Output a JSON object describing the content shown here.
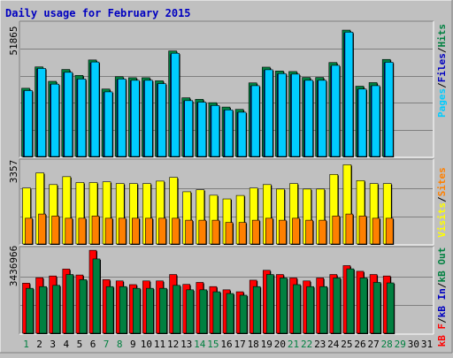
{
  "chart_data": [
    {
      "panel": "top",
      "title": "Daily usage for February 2015",
      "type": "bar",
      "y_axis_label": "51865",
      "ylim": [
        0,
        51865
      ],
      "right_legend": [
        {
          "text": "Pages",
          "color": "#00ccff"
        },
        {
          "text": "/",
          "color": "#000000"
        },
        {
          "text": "Files",
          "color": "#0000c0"
        },
        {
          "text": "/",
          "color": "#000000"
        },
        {
          "text": "Hits",
          "color": "#008040"
        }
      ],
      "categories": [
        "1",
        "2",
        "3",
        "4",
        "5",
        "6",
        "7",
        "8",
        "9",
        "10",
        "11",
        "12",
        "13",
        "14",
        "15",
        "16",
        "17",
        "18",
        "19",
        "20",
        "21",
        "22",
        "23",
        "24",
        "25",
        "26",
        "27",
        "28"
      ],
      "series": [
        {
          "name": "Hits",
          "color": "#008040",
          "values": [
            26500,
            34800,
            29200,
            33800,
            31500,
            37500,
            26200,
            31000,
            30600,
            30600,
            29400,
            41000,
            22800,
            22200,
            20900,
            19200,
            18300,
            28600,
            34700,
            33200,
            33000,
            30700,
            30700,
            36500,
            49100,
            27300,
            28700,
            37700
          ]
        },
        {
          "name": "Files",
          "color": "#0000c0",
          "values": [
            25500,
            34000,
            28000,
            32600,
            30000,
            36300,
            24900,
            29900,
            29400,
            29400,
            28200,
            39600,
            21600,
            21000,
            19700,
            18000,
            17100,
            27400,
            33500,
            32000,
            31800,
            29500,
            29500,
            35000,
            47900,
            26100,
            27400,
            36400
          ]
        },
        {
          "name": "Pages",
          "color": "#00ccff",
          "values": [
            25600,
            34200,
            28100,
            32700,
            30100,
            36700,
            25100,
            30100,
            29600,
            29600,
            28300,
            40100,
            21700,
            21100,
            19800,
            18100,
            17200,
            27500,
            33700,
            32200,
            32000,
            29600,
            29600,
            35400,
            48300,
            26200,
            27500,
            36600
          ]
        }
      ]
    },
    {
      "panel": "middle",
      "type": "bar",
      "y_axis_label": "3357",
      "ylim": [
        0,
        3357
      ],
      "right_legend": [
        {
          "text": "Visits",
          "color": "#ffff00"
        },
        {
          "text": "/",
          "color": "#000000"
        },
        {
          "text": "Sites",
          "color": "#ff8000"
        }
      ],
      "categories": [
        "1",
        "2",
        "3",
        "4",
        "5",
        "6",
        "7",
        "8",
        "9",
        "10",
        "11",
        "12",
        "13",
        "14",
        "15",
        "16",
        "17",
        "18",
        "19",
        "20",
        "21",
        "22",
        "23",
        "24",
        "25",
        "26",
        "27",
        "28"
      ],
      "series": [
        {
          "name": "Visits",
          "color": "#ffff00",
          "values": [
            2260,
            2870,
            2400,
            2720,
            2480,
            2480,
            2510,
            2440,
            2440,
            2440,
            2540,
            2690,
            2110,
            2190,
            1970,
            1820,
            1960,
            2260,
            2400,
            2220,
            2440,
            2220,
            2220,
            2810,
            3200,
            2560,
            2440,
            2440
          ]
        },
        {
          "name": "Sites",
          "color": "#ff8000",
          "values": [
            1040,
            1210,
            1130,
            1040,
            1040,
            1130,
            1040,
            1040,
            1040,
            1040,
            1040,
            1040,
            960,
            960,
            960,
            870,
            870,
            960,
            1040,
            960,
            1040,
            960,
            960,
            1130,
            1210,
            1130,
            1040,
            1040
          ]
        }
      ]
    },
    {
      "panel": "bottom",
      "type": "bar",
      "y_axis_label": "3436966",
      "ylim": [
        0,
        3436966
      ],
      "right_legend": [
        {
          "text": "kB F",
          "color": "#ff0000"
        },
        {
          "text": "/",
          "color": "#000000"
        },
        {
          "text": "kB In",
          "color": "#0000c0"
        },
        {
          "text": "/",
          "color": "#000000"
        },
        {
          "text": "kB Out",
          "color": "#008040"
        }
      ],
      "categories": [
        "1",
        "2",
        "3",
        "4",
        "5",
        "6",
        "7",
        "8",
        "9",
        "10",
        "11",
        "12",
        "13",
        "14",
        "15",
        "16",
        "17",
        "18",
        "19",
        "20",
        "21",
        "22",
        "23",
        "24",
        "25",
        "26",
        "27",
        "28"
      ],
      "series": [
        {
          "name": "kB F",
          "color": "#ff0000",
          "values": [
            2030,
            2250,
            2320,
            2600,
            2360,
            3360,
            2170,
            2120,
            1970,
            2120,
            2120,
            2380,
            1980,
            2060,
            1890,
            1760,
            1680,
            2150,
            2550,
            2380,
            2240,
            2120,
            2240,
            2380,
            2740,
            2510,
            2380,
            2320
          ]
        },
        {
          "name": "kB Out",
          "color": "#008040",
          "values": [
            1820,
            1890,
            1940,
            2380,
            2170,
            3010,
            1890,
            1890,
            1820,
            1820,
            1820,
            1940,
            1760,
            1760,
            1680,
            1610,
            1540,
            1890,
            2380,
            2240,
            1970,
            1890,
            1890,
            2240,
            2610,
            2240,
            2060,
            2040
          ]
        }
      ]
    }
  ],
  "x_axis": {
    "days": [
      "1",
      "2",
      "3",
      "4",
      "5",
      "6",
      "7",
      "8",
      "9",
      "10",
      "11",
      "12",
      "13",
      "14",
      "15",
      "16",
      "17",
      "18",
      "19",
      "20",
      "21",
      "22",
      "23",
      "24",
      "25",
      "26",
      "27",
      "28",
      "29",
      "30",
      "31"
    ],
    "weekend_days": [
      "1",
      "7",
      "8",
      "14",
      "15",
      "21",
      "22",
      "28",
      "29"
    ],
    "weekend_color": "#008040",
    "weekday_color": "#000000"
  }
}
